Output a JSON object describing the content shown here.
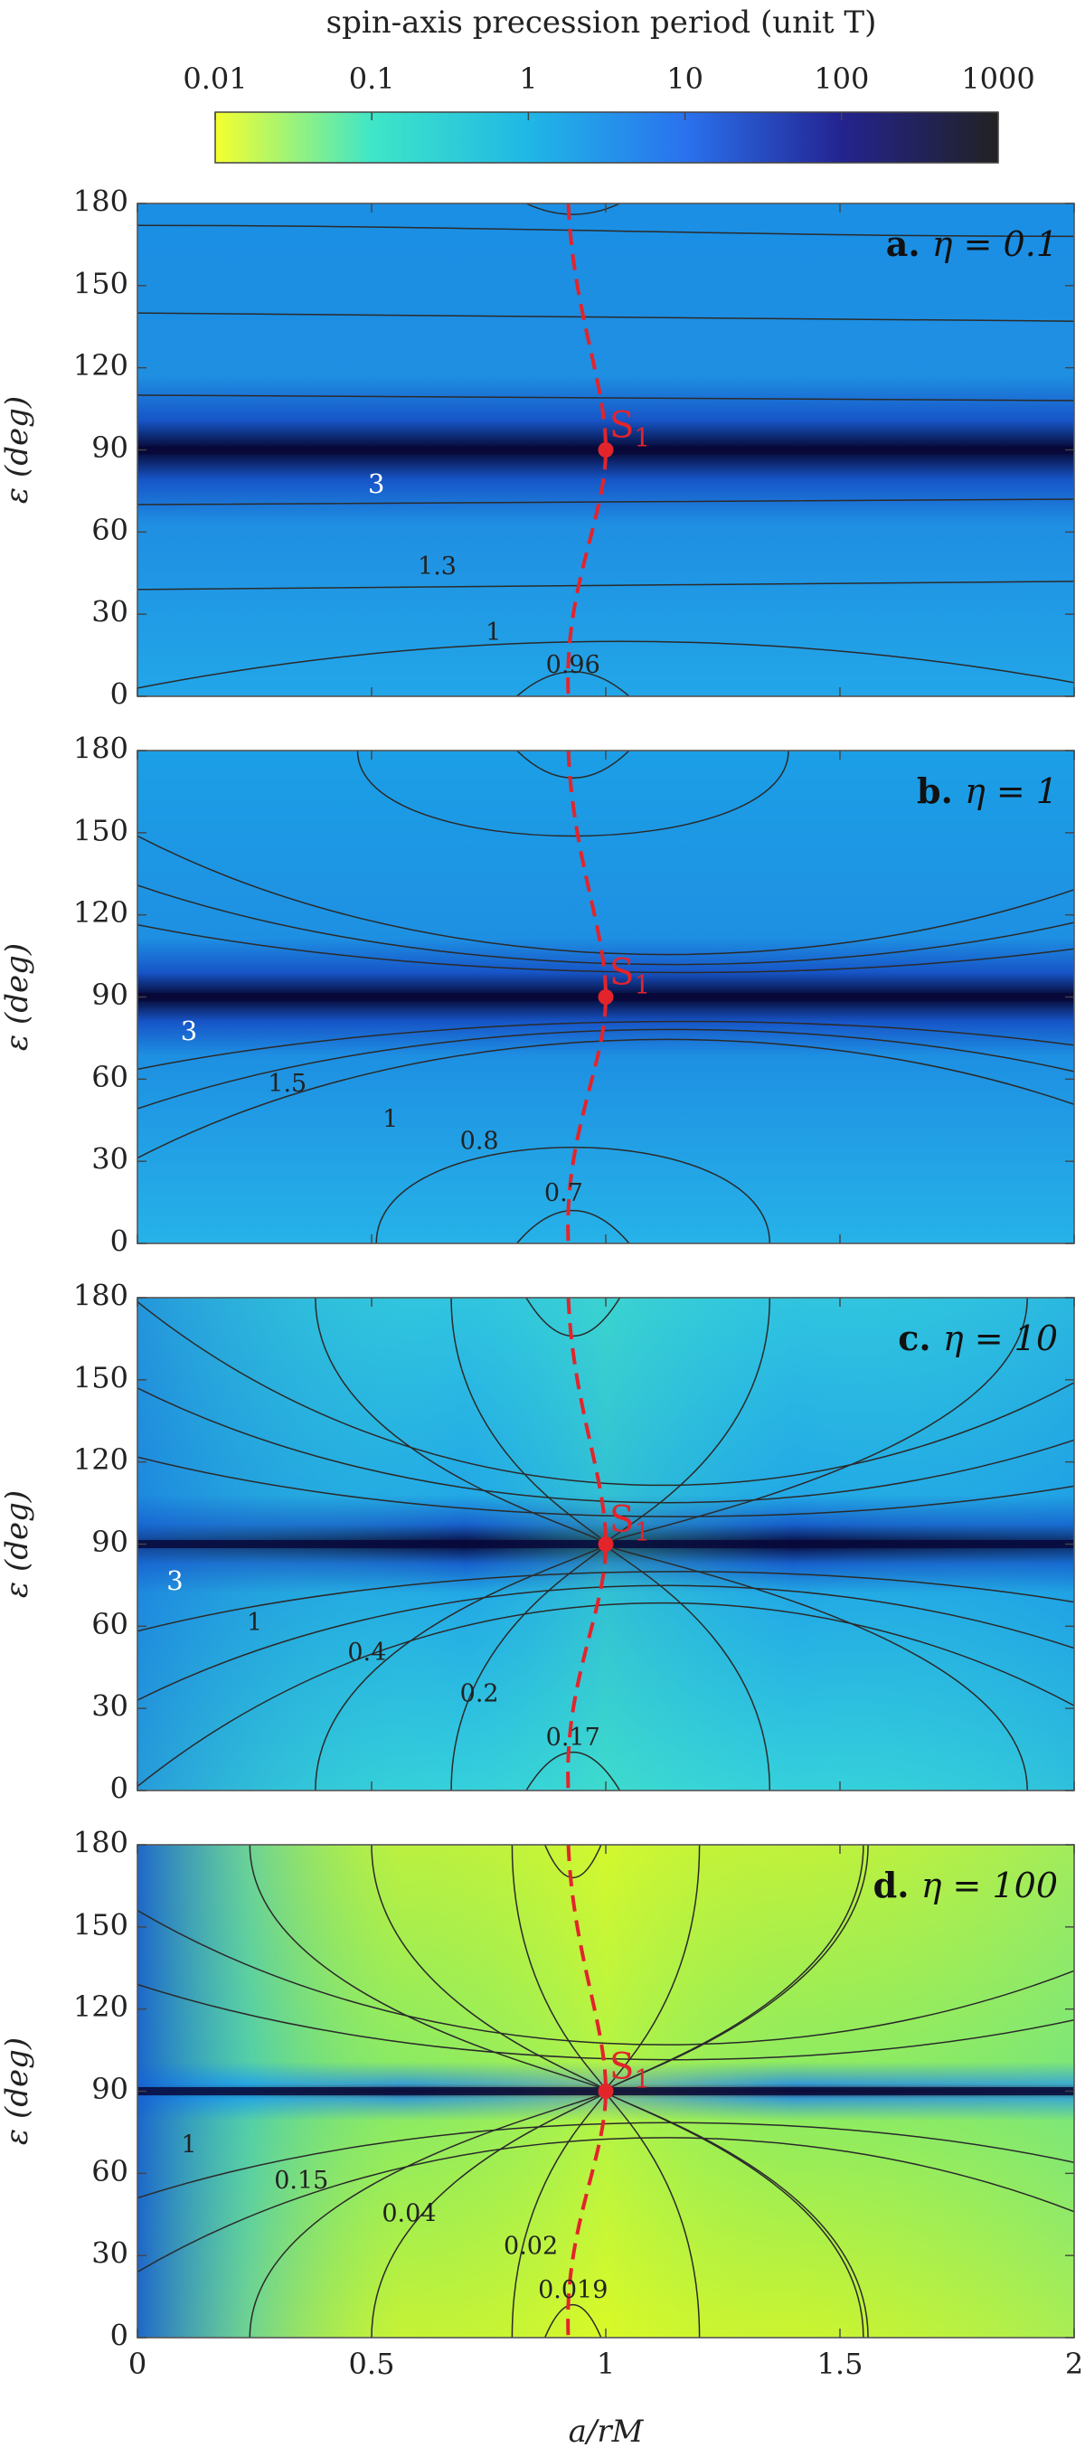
{
  "colorbar": {
    "title": "spin-axis precession period (unit T)",
    "ticks": [
      "0.01",
      "0.1",
      "1",
      "10",
      "100",
      "1000"
    ],
    "colors": [
      "#f5ff2e",
      "#3fe6c7",
      "#1fb7e6",
      "#2a72ee",
      "#232390",
      "#222222"
    ]
  },
  "chart_data": [
    {
      "type": "heatmap",
      "panel": "a",
      "title_letter": "a.",
      "title_eq": "η = 0.1",
      "xlabel": "a/rM",
      "ylabel": "ε (deg)",
      "xlim": [
        0,
        2
      ],
      "ylim": [
        0,
        180
      ],
      "xticks": [
        "0",
        "0.5",
        "1",
        "1.5",
        "2"
      ],
      "yticks": [
        "0",
        "30",
        "60",
        "90",
        "120",
        "150",
        "180"
      ],
      "contour_labels": [
        {
          "text": "3",
          "x": 0.51,
          "y": 77,
          "color": "white"
        },
        {
          "text": "1.3",
          "x": 0.64,
          "y": 47
        },
        {
          "text": "1",
          "x": 0.76,
          "y": 23
        },
        {
          "text": "0.96",
          "x": 0.93,
          "y": 11
        }
      ],
      "point": {
        "label": "S1",
        "x": 1.0,
        "y": 90
      }
    },
    {
      "type": "heatmap",
      "panel": "b",
      "title_letter": "b.",
      "title_eq": "η = 1",
      "xlabel": "a/rM",
      "ylabel": "ε (deg)",
      "xlim": [
        0,
        2
      ],
      "ylim": [
        0,
        180
      ],
      "xticks": [
        "0",
        "0.5",
        "1",
        "1.5",
        "2"
      ],
      "yticks": [
        "0",
        "30",
        "60",
        "90",
        "120",
        "150",
        "180"
      ],
      "contour_labels": [
        {
          "text": "3",
          "x": 0.11,
          "y": 77,
          "color": "white"
        },
        {
          "text": "1.5",
          "x": 0.32,
          "y": 58
        },
        {
          "text": "1",
          "x": 0.54,
          "y": 45
        },
        {
          "text": "0.8",
          "x": 0.73,
          "y": 37
        },
        {
          "text": "0.7",
          "x": 0.91,
          "y": 18
        }
      ],
      "point": {
        "label": "S1",
        "x": 1.0,
        "y": 90
      }
    },
    {
      "type": "heatmap",
      "panel": "c",
      "title_letter": "c.",
      "title_eq": "η = 10",
      "xlabel": "a/rM",
      "ylabel": "ε (deg)",
      "xlim": [
        0,
        2
      ],
      "ylim": [
        0,
        180
      ],
      "xticks": [
        "0",
        "0.5",
        "1",
        "1.5",
        "2"
      ],
      "yticks": [
        "0",
        "30",
        "60",
        "90",
        "120",
        "150",
        "180"
      ],
      "contour_labels": [
        {
          "text": "3",
          "x": 0.08,
          "y": 76,
          "color": "white"
        },
        {
          "text": "1",
          "x": 0.25,
          "y": 61
        },
        {
          "text": "0.4",
          "x": 0.49,
          "y": 50
        },
        {
          "text": "0.2",
          "x": 0.73,
          "y": 35
        },
        {
          "text": "0.17",
          "x": 0.93,
          "y": 19
        }
      ],
      "point": {
        "label": "S1",
        "x": 1.0,
        "y": 90
      }
    },
    {
      "type": "heatmap",
      "panel": "d",
      "title_letter": "d.",
      "title_eq": "η = 100",
      "xlabel": "a/rM",
      "ylabel": "ε (deg)",
      "xlim": [
        0,
        2
      ],
      "ylim": [
        0,
        180
      ],
      "xticks": [
        "0",
        "0.5",
        "1",
        "1.5",
        "2"
      ],
      "yticks": [
        "0",
        "30",
        "60",
        "90",
        "120",
        "150",
        "180"
      ],
      "contour_labels": [
        {
          "text": "1",
          "x": 0.11,
          "y": 70
        },
        {
          "text": "0.15",
          "x": 0.35,
          "y": 57
        },
        {
          "text": "0.04",
          "x": 0.58,
          "y": 45
        },
        {
          "text": "0.02",
          "x": 0.84,
          "y": 33
        },
        {
          "text": "0.019",
          "x": 0.93,
          "y": 17
        }
      ],
      "point": {
        "label": "S1",
        "x": 1.0,
        "y": 90
      }
    }
  ]
}
